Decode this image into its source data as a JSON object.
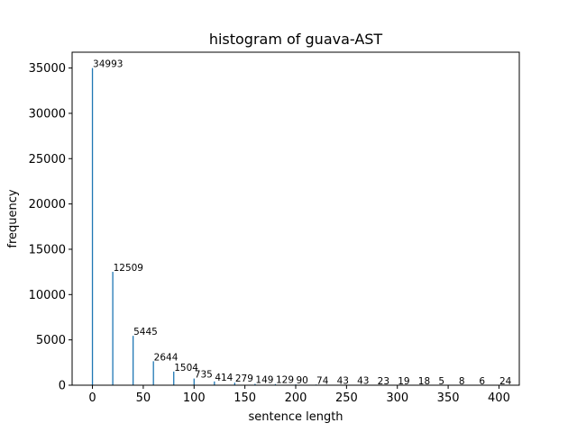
{
  "chart_data": {
    "type": "bar",
    "title": "histogram of guava-AST",
    "xlabel": "sentence length",
    "ylabel": "frequency",
    "x": [
      0,
      20,
      40,
      60,
      80,
      100,
      120,
      140,
      160,
      180,
      200,
      220,
      240,
      260,
      280,
      300,
      320,
      340,
      360,
      380,
      400
    ],
    "values": [
      34993,
      12509,
      5445,
      2644,
      1504,
      735,
      414,
      279,
      149,
      129,
      90,
      74,
      43,
      43,
      23,
      19,
      18,
      5,
      8,
      6,
      24
    ],
    "xlim": [
      -20,
      420
    ],
    "ylim": [
      0,
      36745
    ],
    "xticks": [
      0,
      50,
      100,
      150,
      200,
      250,
      300,
      350,
      400
    ],
    "yticks": [
      0,
      5000,
      10000,
      15000,
      20000,
      25000,
      30000,
      35000
    ],
    "grid": false,
    "bar_color": "#1f77b4"
  }
}
